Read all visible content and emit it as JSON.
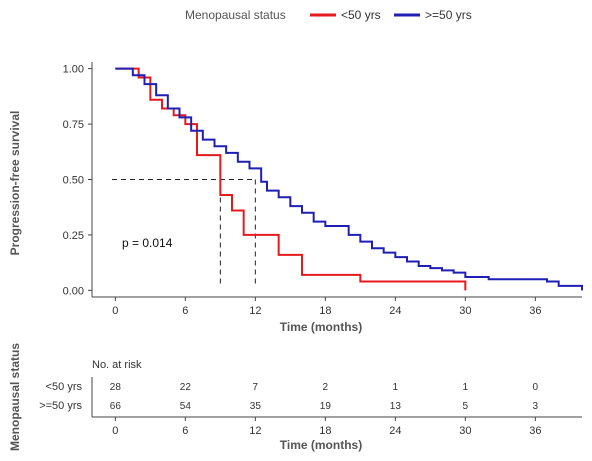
{
  "chart_data": {
    "type": "line",
    "subtype": "kaplan-meier",
    "legend": {
      "title": "Menopausal status",
      "placement": "top",
      "entries": [
        {
          "label": "<50 yrs",
          "color": "#e41a1c"
        },
        {
          "label": ">=50 yrs",
          "color": "#1f1fb4"
        }
      ]
    },
    "xlabel": "Time (months)",
    "ylabel": "Progression-free survival",
    "xlim": [
      -2,
      40
    ],
    "ylim": [
      -0.03,
      1.03
    ],
    "x_ticks": [
      0,
      6,
      12,
      18,
      24,
      30,
      36
    ],
    "y_ticks": [
      0.0,
      0.25,
      0.5,
      0.75,
      1.0
    ],
    "x_tick_labels": [
      "0",
      "6",
      "12",
      "18",
      "24",
      "30",
      "36"
    ],
    "y_tick_labels": [
      "0.00",
      "0.25",
      "0.50",
      "0.75",
      "1.00"
    ],
    "grid": false,
    "annotation": "p = 0.014",
    "median_lines": {
      "y": 0.5,
      "x": [
        9,
        12
      ]
    },
    "series": [
      {
        "name": "<50 yrs",
        "color": "#e41a1c",
        "x": [
          0,
          2,
          3,
          4,
          5,
          6,
          7,
          9,
          10,
          11,
          14,
          16,
          21,
          30
        ],
        "y": [
          1.0,
          0.96,
          0.86,
          0.82,
          0.79,
          0.75,
          0.61,
          0.43,
          0.36,
          0.25,
          0.16,
          0.07,
          0.04,
          0.0
        ]
      },
      {
        "name": ">=50 yrs",
        "color": "#1f1fb4",
        "x": [
          0,
          1.5,
          2.5,
          3.5,
          4.5,
          5.5,
          6.5,
          7.5,
          8.5,
          9.5,
          10.5,
          11.5,
          12.5,
          13,
          14,
          15,
          16,
          17,
          18,
          20,
          21,
          22,
          23,
          24,
          25,
          26,
          27,
          28,
          29,
          30,
          32,
          35,
          37,
          38,
          39,
          40
        ],
        "y": [
          1.0,
          0.97,
          0.93,
          0.88,
          0.82,
          0.78,
          0.72,
          0.68,
          0.65,
          0.62,
          0.58,
          0.55,
          0.49,
          0.45,
          0.42,
          0.38,
          0.35,
          0.31,
          0.29,
          0.25,
          0.22,
          0.19,
          0.17,
          0.15,
          0.13,
          0.11,
          0.1,
          0.09,
          0.08,
          0.06,
          0.05,
          0.05,
          0.04,
          0.02,
          0.02,
          0.0
        ]
      }
    ],
    "risk_table": {
      "title": "No. at risk",
      "ylabel": "Menopausal status",
      "xlabel": "Time (months)",
      "times": [
        0,
        6,
        12,
        18,
        24,
        30,
        36
      ],
      "rows": [
        {
          "label": "<50 yrs",
          "values": [
            "28",
            "22",
            "7",
            "2",
            "1",
            "1",
            "0"
          ]
        },
        {
          "label": ">=50 yrs",
          "values": [
            "66",
            "54",
            "35",
            "19",
            "13",
            "5",
            "3"
          ]
        }
      ]
    }
  }
}
